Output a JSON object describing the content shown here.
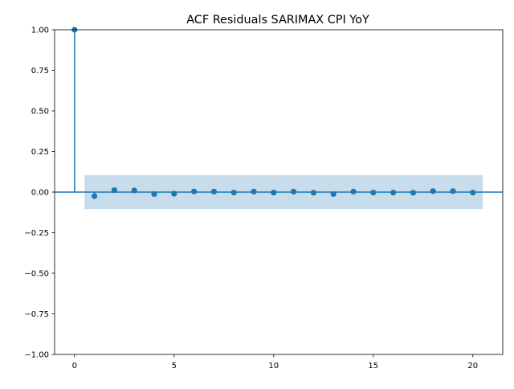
{
  "chart_data": {
    "type": "scatter",
    "subtype": "acf-stem",
    "title": "ACF Residuals SARIMAX CPI YoY",
    "xlabel": "",
    "ylabel": "",
    "xlim": [
      -1,
      21.5
    ],
    "ylim": [
      -1.0,
      1.0
    ],
    "x_ticks": [
      0,
      5,
      10,
      15,
      20
    ],
    "x_tick_labels": [
      "0",
      "5",
      "10",
      "15",
      "20"
    ],
    "y_ticks": [
      -1.0,
      -0.75,
      -0.5,
      -0.25,
      0.0,
      0.25,
      0.5,
      0.75,
      1.0
    ],
    "y_tick_labels": [
      "−1.00",
      "−0.75",
      "−0.50",
      "−0.25",
      "0.00",
      "0.25",
      "0.50",
      "0.75",
      "1.00"
    ],
    "grid": false,
    "legend": "none",
    "series": [
      {
        "lags": [
          0,
          1,
          2,
          3,
          4,
          5,
          6,
          7,
          8,
          9,
          10,
          11,
          12,
          13,
          14,
          15,
          16,
          17,
          18,
          19,
          20
        ],
        "values": [
          1.0,
          -0.025,
          0.012,
          0.01,
          -0.012,
          -0.01,
          0.004,
          0.003,
          -0.003,
          0.003,
          -0.003,
          0.003,
          -0.004,
          -0.012,
          0.003,
          -0.003,
          -0.003,
          -0.004,
          0.006,
          0.006,
          -0.003
        ]
      }
    ],
    "confidence_band": {
      "lower": -0.105,
      "upper": 0.105,
      "x_start": 0.5,
      "x_end": 20.5
    },
    "colors": {
      "stem": "#1f77b4",
      "marker": "#1f77b4",
      "band": "#1f77b4",
      "axis": "#000000",
      "zero_line": "#1f77b4"
    }
  }
}
